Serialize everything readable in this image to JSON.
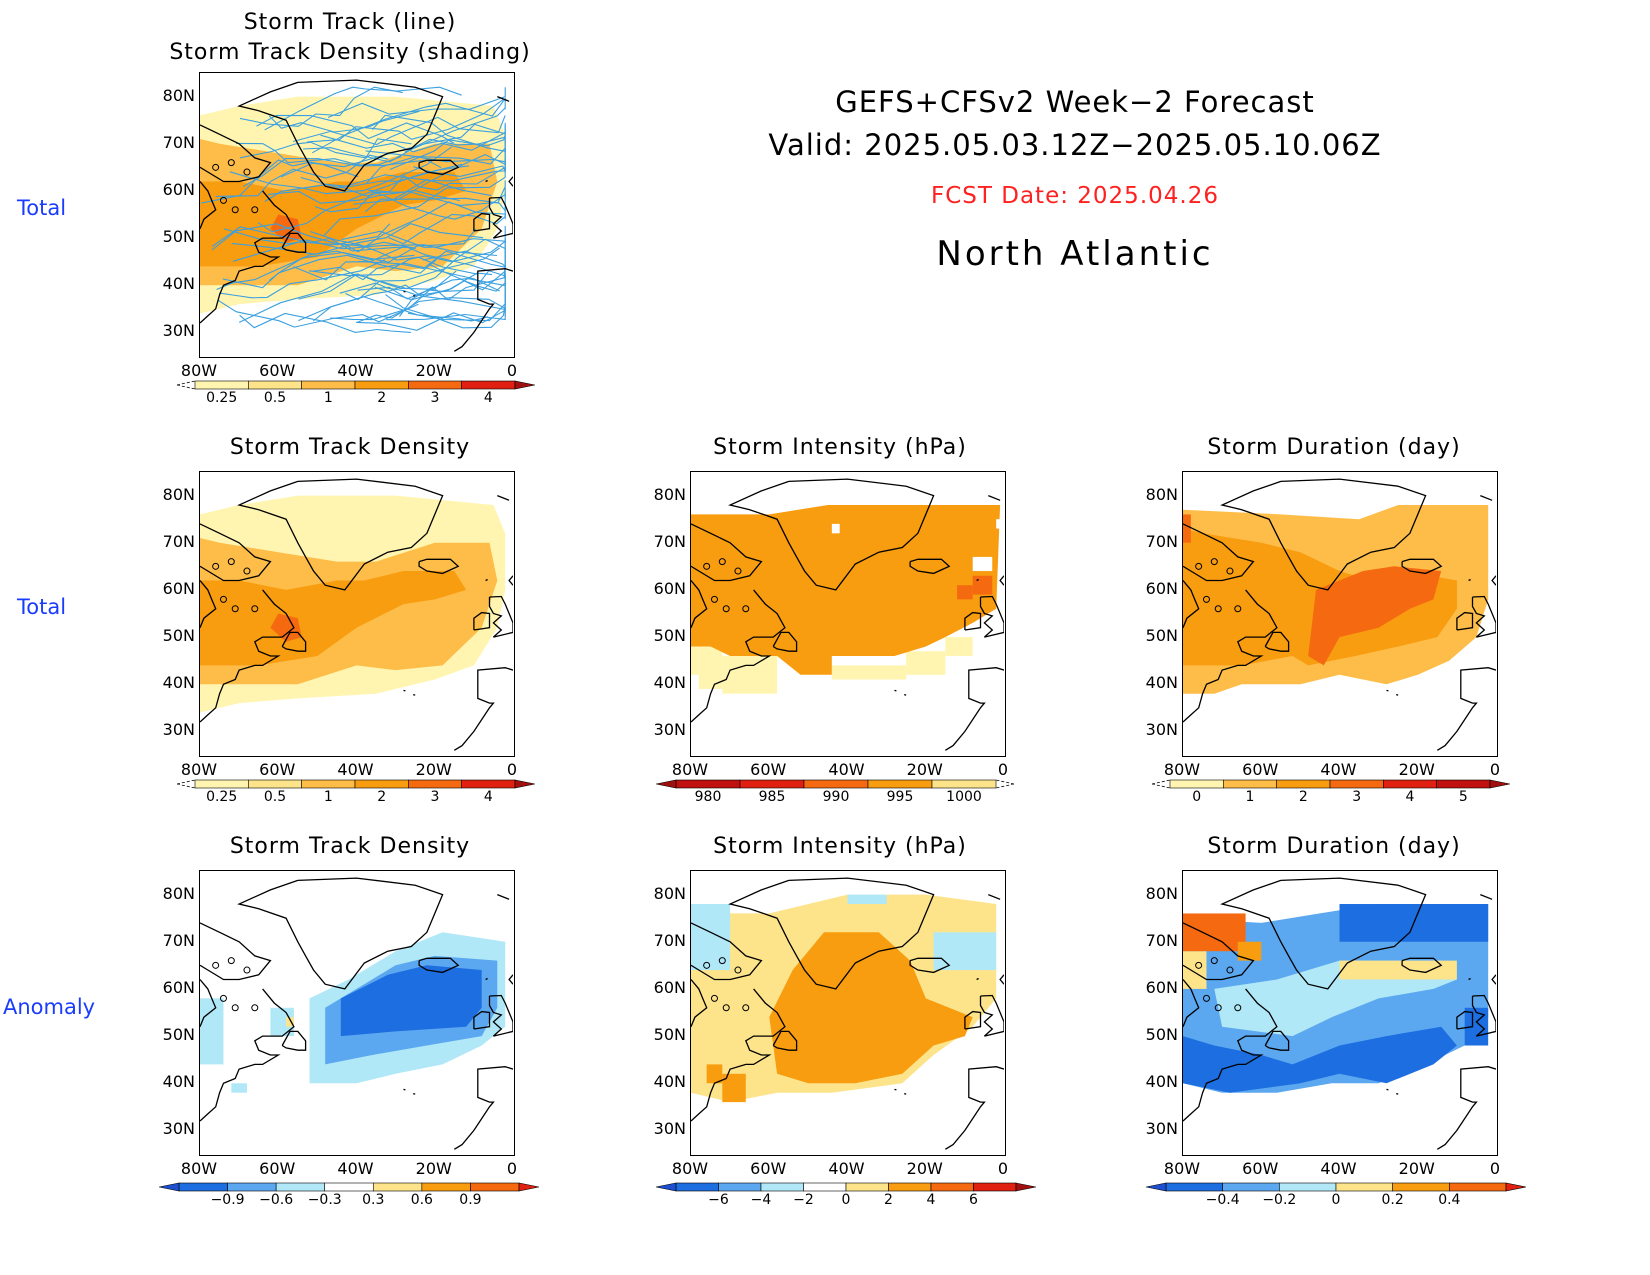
{
  "header": {
    "line1": "GEFS+CFSv2 Week−2 Forecast",
    "line2": "Valid: 2025.05.03.12Z−2025.05.10.06Z",
    "fcst": "FCST Date: 2025.04.26",
    "region": "North Atlantic",
    "fcst_color": "#ff2020"
  },
  "row_labels": {
    "r1": "Total",
    "r2": "Total",
    "r3": "Anomaly"
  },
  "titles": {
    "p1_line1": "Storm Track (line)",
    "p1_line2": "Storm Track Density (shading)",
    "p2": "Storm Track Density",
    "p3": "Storm Intensity (hPa)",
    "p4": "Storm Duration (day)",
    "p5": "Storm Track Density",
    "p6": "Storm Intensity (hPa)",
    "p7": "Storm Duration (day)"
  },
  "axes": {
    "lat_ticks": [
      "80N",
      "70N",
      "60N",
      "50N",
      "40N",
      "30N"
    ],
    "lon_ticks": [
      "80W",
      "60W",
      "40W",
      "20W",
      "0"
    ]
  },
  "colorbars": {
    "density_total": [
      "0.25",
      "0.5",
      "1",
      "2",
      "3",
      "4"
    ],
    "intensity_total": [
      "980",
      "985",
      "990",
      "995",
      "1000"
    ],
    "duration_total": [
      "0",
      "1",
      "2",
      "3",
      "4",
      "5"
    ],
    "density_anom": [
      "−0.9",
      "−0.6",
      "−0.3",
      "0.3",
      "0.6",
      "0.9"
    ],
    "intensity_anom": [
      "−6",
      "−4",
      "−2",
      "0",
      "2",
      "4",
      "6"
    ],
    "duration_anom": [
      "−0.4",
      "−0.2",
      "0",
      "0.2",
      "0.4"
    ]
  },
  "colors": {
    "light_yellow": "#fff5b0",
    "yellow": "#fde48a",
    "light_orange": "#fdbd48",
    "orange": "#f89c10",
    "dark_orange": "#f56a10",
    "red": "#e02010",
    "dark_red": "#a01010",
    "light_blue": "#b0e8f8",
    "mid_blue": "#5ca8f0",
    "blue": "#1d6ee0",
    "track_line": "#3aa0e0"
  }
}
